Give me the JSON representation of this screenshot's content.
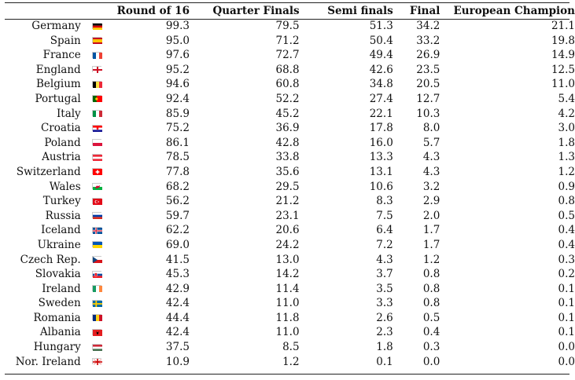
{
  "headers": {
    "country": "",
    "flag": "",
    "r16": "Round of 16",
    "qf": "Quarter Finals",
    "sf": "Semi finals",
    "final": "Final",
    "champion": "European Champion"
  },
  "rows": [
    {
      "country": "Germany",
      "flag": "germany-flag",
      "r16": "99.3",
      "qf": "79.5",
      "sf": "51.3",
      "final": "34.2",
      "champion": "21.1"
    },
    {
      "country": "Spain",
      "flag": "spain-flag",
      "r16": "95.0",
      "qf": "71.2",
      "sf": "50.4",
      "final": "33.2",
      "champion": "19.8"
    },
    {
      "country": "France",
      "flag": "france-flag",
      "r16": "97.6",
      "qf": "72.7",
      "sf": "49.4",
      "final": "26.9",
      "champion": "14.9"
    },
    {
      "country": "England",
      "flag": "england-flag",
      "r16": "95.2",
      "qf": "68.8",
      "sf": "42.6",
      "final": "23.5",
      "champion": "12.5"
    },
    {
      "country": "Belgium",
      "flag": "belgium-flag",
      "r16": "94.6",
      "qf": "60.8",
      "sf": "34.8",
      "final": "20.5",
      "champion": "11.0"
    },
    {
      "country": "Portugal",
      "flag": "portugal-flag",
      "r16": "92.4",
      "qf": "52.2",
      "sf": "27.4",
      "final": "12.7",
      "champion": "5.4"
    },
    {
      "country": "Italy",
      "flag": "italy-flag",
      "r16": "85.9",
      "qf": "45.2",
      "sf": "22.1",
      "final": "10.3",
      "champion": "4.2"
    },
    {
      "country": "Croatia",
      "flag": "croatia-flag",
      "r16": "75.2",
      "qf": "36.9",
      "sf": "17.8",
      "final": "8.0",
      "champion": "3.0"
    },
    {
      "country": "Poland",
      "flag": "poland-flag",
      "r16": "86.1",
      "qf": "42.8",
      "sf": "16.0",
      "final": "5.7",
      "champion": "1.8"
    },
    {
      "country": "Austria",
      "flag": "austria-flag",
      "r16": "78.5",
      "qf": "33.8",
      "sf": "13.3",
      "final": "4.3",
      "champion": "1.3"
    },
    {
      "country": "Switzerland",
      "flag": "switzerland-flag",
      "r16": "77.8",
      "qf": "35.6",
      "sf": "13.1",
      "final": "4.3",
      "champion": "1.2"
    },
    {
      "country": "Wales",
      "flag": "wales-flag",
      "r16": "68.2",
      "qf": "29.5",
      "sf": "10.6",
      "final": "3.2",
      "champion": "0.9"
    },
    {
      "country": "Turkey",
      "flag": "turkey-flag",
      "r16": "56.2",
      "qf": "21.2",
      "sf": "8.3",
      "final": "2.9",
      "champion": "0.8"
    },
    {
      "country": "Russia",
      "flag": "russia-flag",
      "r16": "59.7",
      "qf": "23.1",
      "sf": "7.5",
      "final": "2.0",
      "champion": "0.5"
    },
    {
      "country": "Iceland",
      "flag": "iceland-flag",
      "r16": "62.2",
      "qf": "20.6",
      "sf": "6.4",
      "final": "1.7",
      "champion": "0.4"
    },
    {
      "country": "Ukraine",
      "flag": "ukraine-flag",
      "r16": "69.0",
      "qf": "24.2",
      "sf": "7.2",
      "final": "1.7",
      "champion": "0.4"
    },
    {
      "country": "Czech Rep.",
      "flag": "czech-flag",
      "r16": "41.5",
      "qf": "13.0",
      "sf": "4.3",
      "final": "1.2",
      "champion": "0.3"
    },
    {
      "country": "Slovakia",
      "flag": "slovakia-flag",
      "r16": "45.3",
      "qf": "14.2",
      "sf": "3.7",
      "final": "0.8",
      "champion": "0.2"
    },
    {
      "country": "Ireland",
      "flag": "ireland-flag",
      "r16": "42.9",
      "qf": "11.4",
      "sf": "3.5",
      "final": "0.8",
      "champion": "0.1"
    },
    {
      "country": "Sweden",
      "flag": "sweden-flag",
      "r16": "42.4",
      "qf": "11.0",
      "sf": "3.3",
      "final": "0.8",
      "champion": "0.1"
    },
    {
      "country": "Romania",
      "flag": "romania-flag",
      "r16": "44.4",
      "qf": "11.8",
      "sf": "2.6",
      "final": "0.5",
      "champion": "0.1"
    },
    {
      "country": "Albania",
      "flag": "albania-flag",
      "r16": "42.4",
      "qf": "11.0",
      "sf": "2.3",
      "final": "0.4",
      "champion": "0.1"
    },
    {
      "country": "Hungary",
      "flag": "hungary-flag",
      "r16": "37.5",
      "qf": "8.5",
      "sf": "1.8",
      "final": "0.3",
      "champion": "0.0"
    },
    {
      "country": "Nor. Ireland",
      "flag": "northern-ireland-flag",
      "r16": "10.9",
      "qf": "1.2",
      "sf": "0.1",
      "final": "0.0",
      "champion": "0.0"
    }
  ]
}
